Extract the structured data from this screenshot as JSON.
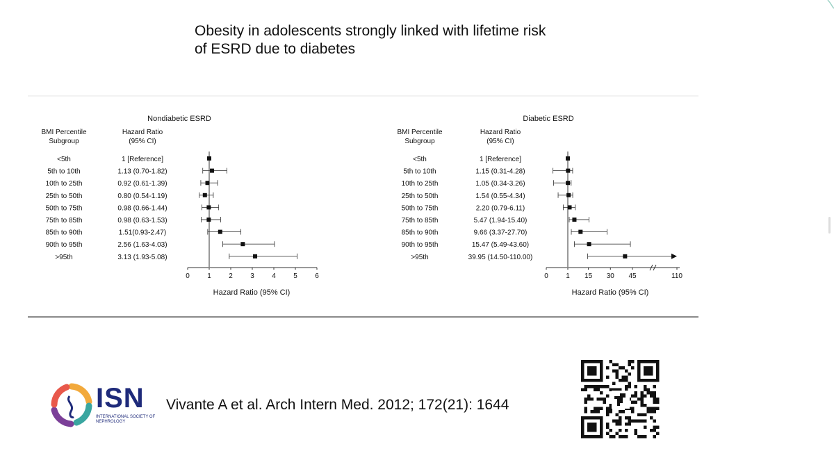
{
  "slide": {
    "title": "Obesity in adolescents strongly linked with lifetime risk of ESRD due to diabetes",
    "citation": "Vivante A et al. Arch Intern Med. 2012; 172(21): 1644",
    "logo": {
      "name": "ISN",
      "subtitle": "INTERNATIONAL SOCIETY OF NEPHROLOGY",
      "icon": "isn-ring-logo-icon"
    },
    "qr_icon": "qr-code-icon",
    "colors": {
      "accent_line": "#8a8a8a",
      "marker": "#111111",
      "isn_navy": "#1e2a7a"
    }
  },
  "chart_data": [
    {
      "type": "forest",
      "title": "Nondiabetic ESRD",
      "col1_header": [
        "BMI Percentile",
        "Subgroup"
      ],
      "col2_header": [
        "Hazard Ratio",
        "(95% CI)"
      ],
      "categories": [
        "<5th",
        "5th to 10th",
        "10th to 25th",
        "25th to 50th",
        "50th to 75th",
        "75th to 85th",
        "85th to 90th",
        "90th to 95th",
        ">95th"
      ],
      "hr_text": [
        "1 [Reference]",
        "1.13 (0.70-1.82)",
        "0.92 (0.61-1.39)",
        "0.80 (0.54-1.19)",
        "0.98 (0.66-1.44)",
        "0.98 (0.63-1.53)",
        "1.51(0.93-2.47)",
        "2.56 (1.63-4.03)",
        "3.13 (1.93-5.08)"
      ],
      "hr": [
        1,
        1.13,
        0.92,
        0.8,
        0.98,
        0.98,
        1.51,
        2.56,
        3.13
      ],
      "ci_low": [
        null,
        0.7,
        0.61,
        0.54,
        0.66,
        0.63,
        0.93,
        1.63,
        1.93
      ],
      "ci_high": [
        null,
        1.82,
        1.39,
        1.19,
        1.44,
        1.53,
        2.47,
        4.03,
        5.08
      ],
      "xlabel": "Hazard Ratio (95% CI)",
      "xticks": [
        "0",
        "1",
        "2",
        "3",
        "4",
        "5",
        "6"
      ],
      "xlim": [
        0,
        6
      ],
      "reference_line": 1
    },
    {
      "type": "forest",
      "title": "Diabetic ESRD",
      "col1_header": [
        "BMI Percentile",
        "Subgroup"
      ],
      "col2_header": [
        "Hazard Ratio",
        "(95% CI)"
      ],
      "categories": [
        "<5th",
        "5th to 10th",
        "10th to 25th",
        "25th to 50th",
        "50th to 75th",
        "75th to 85th",
        "85th to 90th",
        "90th to 95th",
        ">95th"
      ],
      "hr_text": [
        "1 [Reference]",
        "1.15 (0.31-4.28)",
        "1.05 (0.34-3.26)",
        "1.54 (0.55-4.34)",
        "2.20 (0.79-6.11)",
        "5.47 (1.94-15.40)",
        "9.66 (3.37-27.70)",
        "15.47 (5.49-43.60)",
        "39.95 (14.50-110.00)"
      ],
      "hr": [
        1,
        1.15,
        1.05,
        1.54,
        2.2,
        5.47,
        9.66,
        15.47,
        39.95
      ],
      "ci_low": [
        null,
        0.31,
        0.34,
        0.55,
        0.79,
        1.94,
        3.37,
        5.49,
        14.5
      ],
      "ci_high": [
        null,
        4.28,
        3.26,
        4.34,
        6.11,
        15.4,
        27.7,
        43.6,
        110.0
      ],
      "xlabel": "Hazard Ratio (95% CI)",
      "xticks": [
        "0",
        "1",
        "15",
        "30",
        "45",
        "110"
      ],
      "axis_break": true,
      "reference_line": 1
    }
  ]
}
